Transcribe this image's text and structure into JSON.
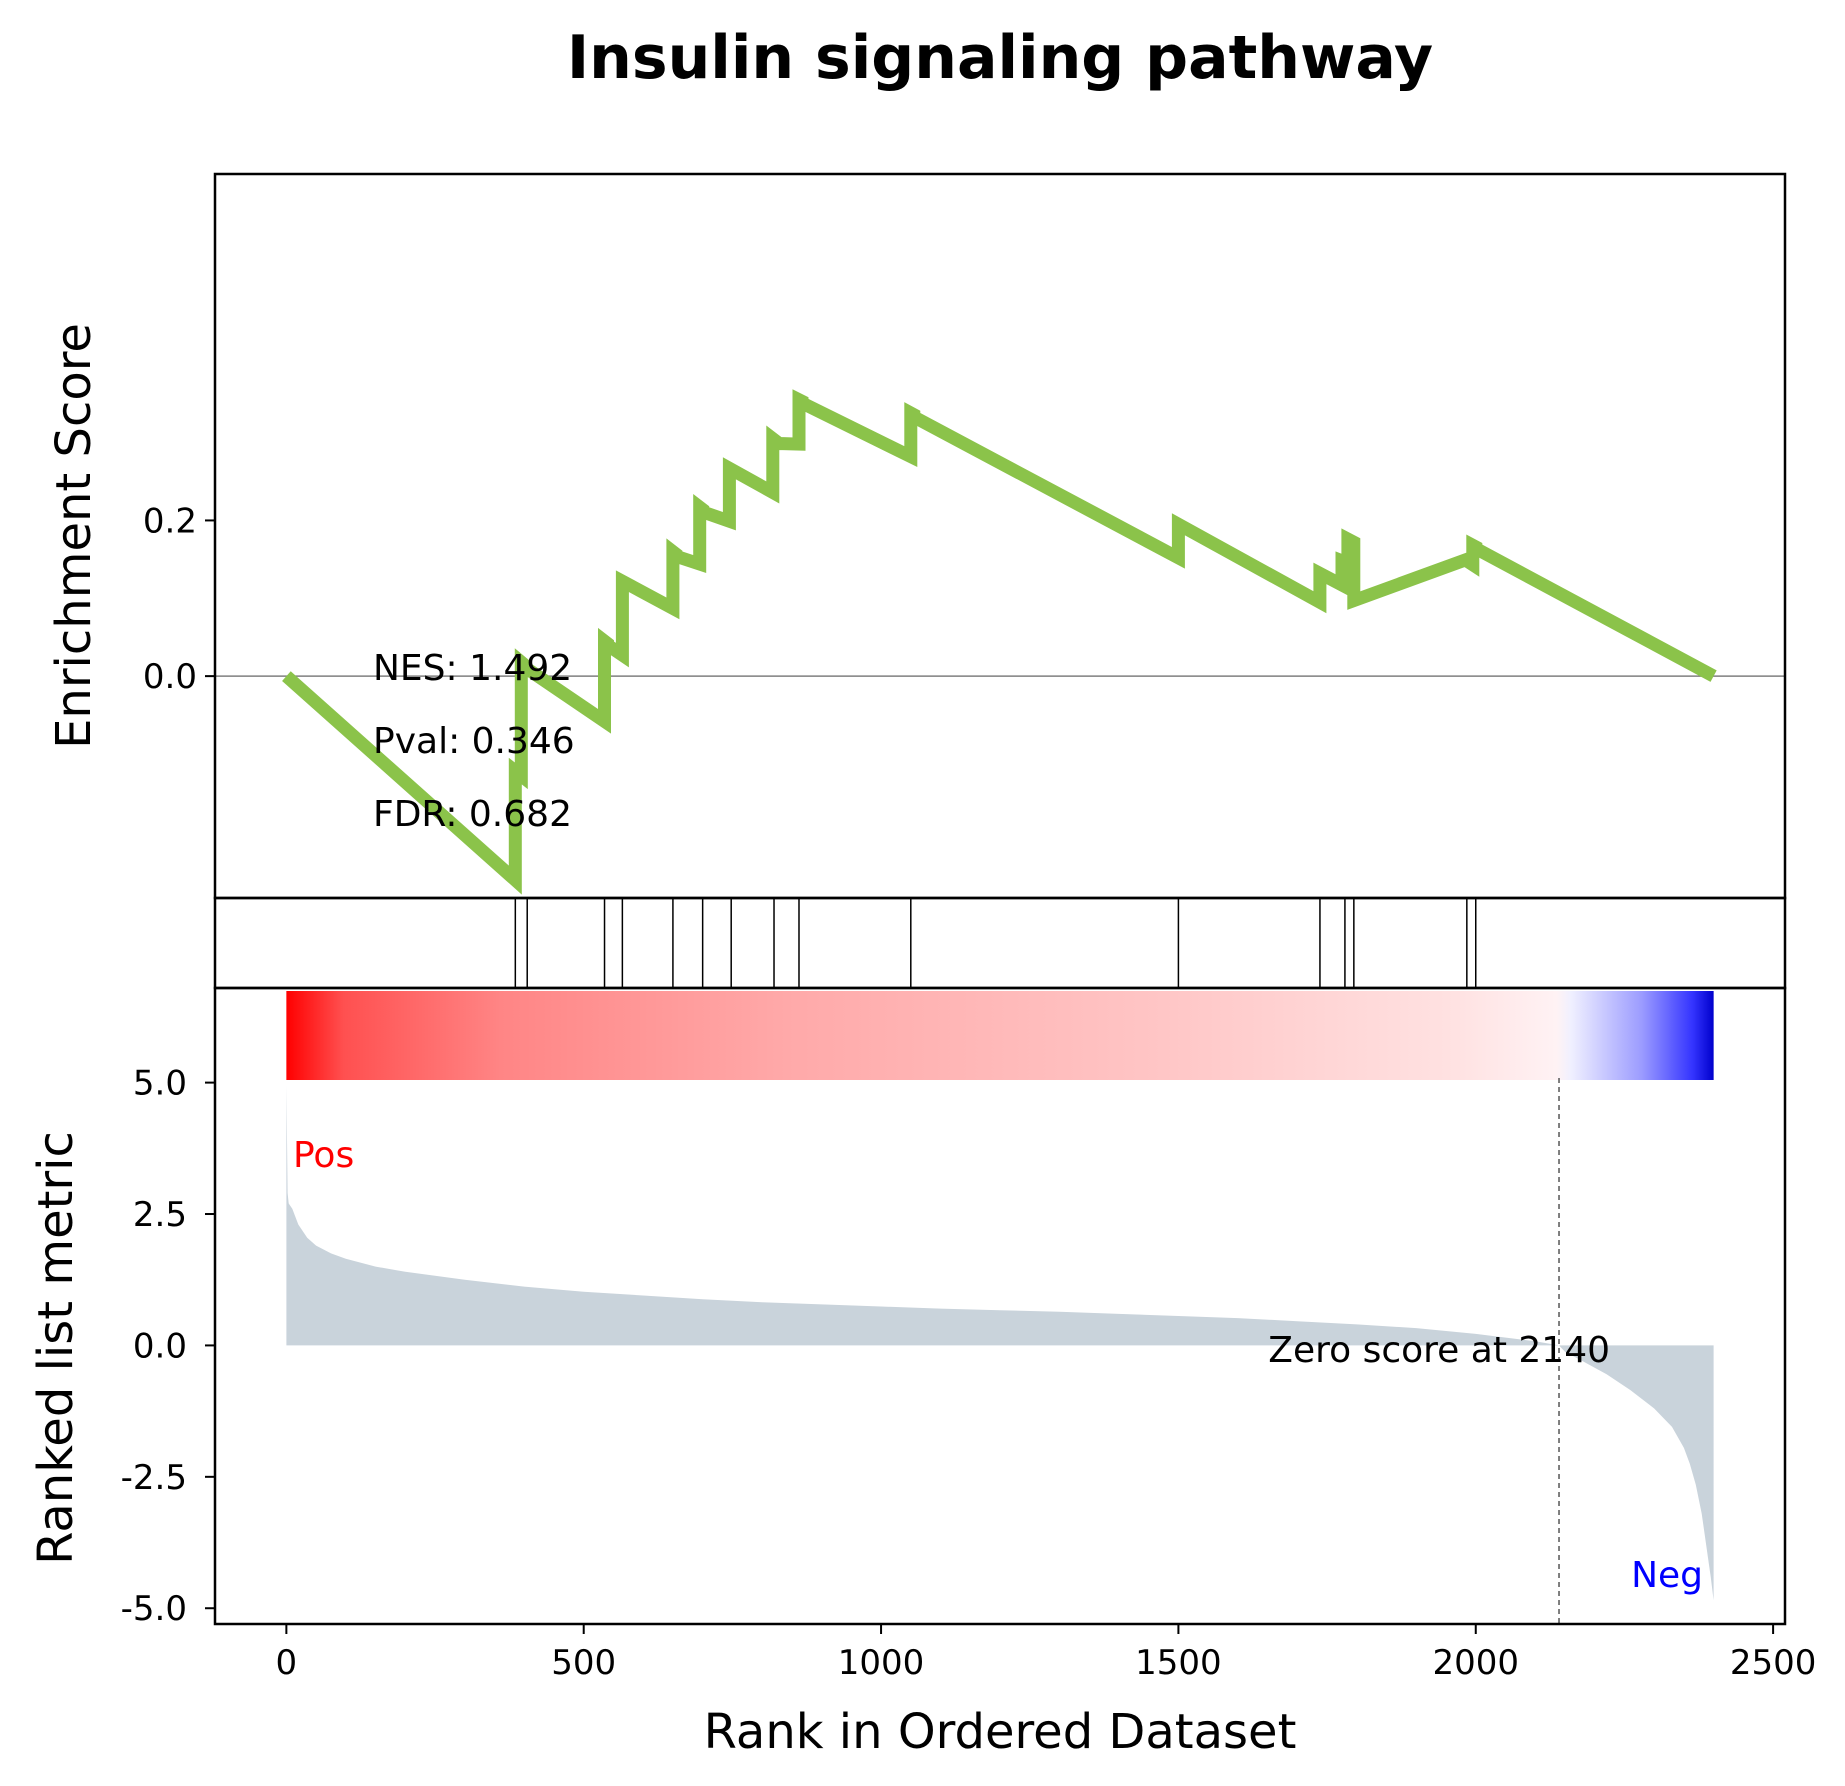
{
  "chart_data": [
    {
      "type": "line",
      "title": "Insulin signaling pathway",
      "xlabel": "",
      "ylabel": "Enrichment Score",
      "xlim": [
        -120,
        2520
      ],
      "ylim": [
        -0.285,
        0.645
      ],
      "yticks": [
        {
          "value": 0.2,
          "label": "0.2"
        },
        {
          "value": 0.0,
          "label": "0.0"
        }
      ],
      "zero_line": true,
      "line_color": "#8bc34a",
      "series": [
        {
          "x": [
            0,
            385,
            385,
            395,
            395,
            400,
            400,
            535,
            535,
            540,
            540,
            565,
            565,
            650,
            650,
            655,
            655,
            695,
            695,
            700,
            700,
            745,
            745,
            818,
            818,
            823,
            823,
            862,
            862,
            867,
            867,
            1050,
            1050,
            1055,
            1055,
            1500,
            1500,
            1738,
            1738,
            1775,
            1775,
            1785,
            1785,
            1795,
            1795,
            1985,
            1985,
            1995,
            1995,
            2000,
            2000,
            2400
          ],
          "y": [
            0.0,
            -0.262,
            -0.122,
            -0.128,
            0.018,
            0.015,
            0.012,
            -0.058,
            0.045,
            0.042,
            0.04,
            0.027,
            0.122,
            0.087,
            0.16,
            0.157,
            0.154,
            0.144,
            0.217,
            0.214,
            0.211,
            0.199,
            0.267,
            0.236,
            0.305,
            0.302,
            0.299,
            0.298,
            0.355,
            0.353,
            0.351,
            0.282,
            0.338,
            0.336,
            0.333,
            0.152,
            0.195,
            0.095,
            0.132,
            0.117,
            0.148,
            0.145,
            0.176,
            0.172,
            0.097,
            0.15,
            0.148,
            0.143,
            0.168,
            0.166,
            0.164,
            0.0
          ]
        }
      ],
      "annotations": [
        "NES: 1.492",
        "Pval: 0.346",
        "FDR: 0.682"
      ]
    },
    {
      "type": "barcode",
      "xlim": [
        -120,
        2520
      ],
      "hits": [
        385,
        405,
        535,
        565,
        650,
        700,
        748,
        820,
        862,
        1050,
        1500,
        1738,
        1780,
        1795,
        1985,
        2000
      ]
    },
    {
      "type": "area",
      "xlabel": "Rank in Ordered Dataset",
      "ylabel": "Ranked list metric",
      "xlim": [
        -120,
        2520
      ],
      "ylim": [
        -5.3,
        6.8
      ],
      "xticks": [
        {
          "value": 0,
          "label": "0"
        },
        {
          "value": 500,
          "label": "500"
        },
        {
          "value": 1000,
          "label": "1000"
        },
        {
          "value": 1500,
          "label": "1500"
        },
        {
          "value": 2000,
          "label": "2000"
        },
        {
          "value": 2500,
          "label": "2500"
        }
      ],
      "yticks": [
        {
          "value": 5.0,
          "label": "5.0"
        },
        {
          "value": 2.5,
          "label": "2.5"
        },
        {
          "value": 0.0,
          "label": "0.0"
        },
        {
          "value": -2.5,
          "label": "-2.5"
        },
        {
          "value": -5.0,
          "label": "-5.0"
        }
      ],
      "fill_color": "#c9d3db",
      "metric": {
        "x": [
          0,
          2,
          4,
          10,
          20,
          35,
          50,
          75,
          100,
          150,
          200,
          300,
          400,
          500,
          600,
          700,
          800,
          900,
          1000,
          1100,
          1200,
          1300,
          1400,
          1500,
          1600,
          1700,
          1800,
          1900,
          2000,
          2100,
          2140,
          2150,
          2180,
          2220,
          2260,
          2300,
          2330,
          2350,
          2360,
          2370,
          2380,
          2385,
          2390,
          2395,
          2400
        ],
        "y": [
          4.95,
          2.9,
          2.7,
          2.6,
          2.3,
          2.05,
          1.9,
          1.75,
          1.65,
          1.5,
          1.4,
          1.25,
          1.12,
          1.02,
          0.95,
          0.88,
          0.82,
          0.78,
          0.74,
          0.7,
          0.67,
          0.64,
          0.6,
          0.56,
          0.52,
          0.46,
          0.4,
          0.33,
          0.22,
          0.08,
          0.0,
          -0.12,
          -0.3,
          -0.55,
          -0.85,
          -1.2,
          -1.55,
          -1.95,
          -2.25,
          -2.65,
          -3.2,
          -3.6,
          -4.0,
          -4.4,
          -4.85
        ]
      },
      "heatmap_stops": [
        {
          "at": 0.0,
          "color": "#ff0000"
        },
        {
          "at": 0.04,
          "color": "#ff5050"
        },
        {
          "at": 0.15,
          "color": "#ff8585"
        },
        {
          "at": 0.35,
          "color": "#ffa9a9"
        },
        {
          "at": 0.6,
          "color": "#ffc4c4"
        },
        {
          "at": 0.82,
          "color": "#ffe2e2"
        },
        {
          "at": 0.89,
          "color": "#fff2f4"
        },
        {
          "at": 0.9,
          "color": "#f0f0ff"
        },
        {
          "at": 0.95,
          "color": "#9b9bff"
        },
        {
          "at": 0.985,
          "color": "#3535ff"
        },
        {
          "at": 1.0,
          "color": "#0000cc"
        }
      ],
      "zero_cross_rank": 2140,
      "labels": {
        "pos": "Pos",
        "neg": "Neg",
        "zero": "Zero score at 2140"
      },
      "pos_color": "#ff0000",
      "neg_color": "#0000ff"
    }
  ]
}
